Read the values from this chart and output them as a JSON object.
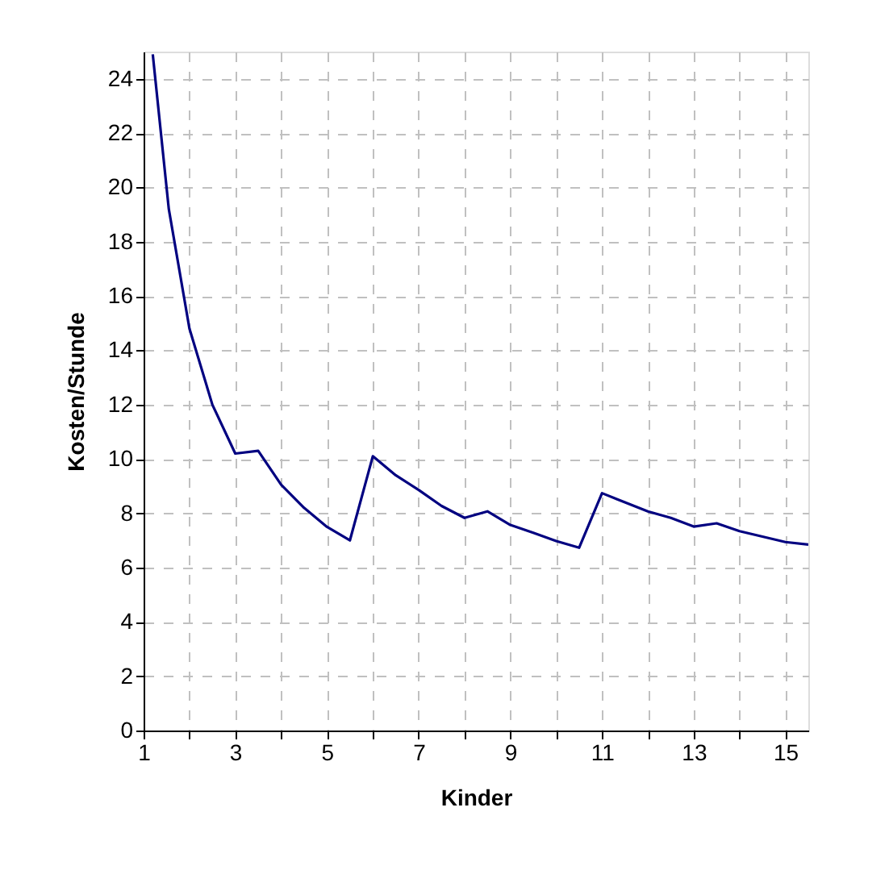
{
  "chart_data": {
    "type": "line",
    "xlabel": "Kinder",
    "ylabel": "Kosten/Stunde",
    "x": [
      1.2,
      1.55,
      2,
      2.5,
      3,
      3.5,
      4,
      4.5,
      5,
      5.5,
      6,
      6.5,
      7,
      7.5,
      8,
      8.5,
      9,
      9.5,
      10,
      10.5,
      11,
      11.5,
      12,
      12.5,
      13,
      13.5,
      14,
      14.5,
      15,
      15.5
    ],
    "series": [
      {
        "color": "#000080",
        "values": [
          24.9,
          19.2,
          14.8,
          12.0,
          10.2,
          10.3,
          9.05,
          8.2,
          7.5,
          7.0,
          10.1,
          9.4,
          8.86,
          8.27,
          7.83,
          8.07,
          7.57,
          7.28,
          6.98,
          6.73,
          8.74,
          8.4,
          8.07,
          7.83,
          7.51,
          7.63,
          7.34,
          7.14,
          6.94,
          6.85
        ]
      }
    ],
    "xlim": [
      1,
      15.5
    ],
    "ylim": [
      0,
      25
    ],
    "xticks": [
      1,
      {
        "value": 2,
        "label": null
      },
      3,
      {
        "value": 4,
        "label": null
      },
      5,
      {
        "value": 6,
        "label": null
      },
      7,
      {
        "value": 8,
        "label": null
      },
      9,
      {
        "value": 10,
        "label": null
      },
      11,
      {
        "value": 12,
        "label": null
      },
      13,
      {
        "value": 14,
        "label": null
      },
      15
    ],
    "yticks": [
      0,
      2,
      4,
      6,
      8,
      10,
      12,
      14,
      16,
      18,
      20,
      22,
      24
    ],
    "grid": true,
    "legend": false,
    "marker": "none",
    "line_style": "solid"
  }
}
